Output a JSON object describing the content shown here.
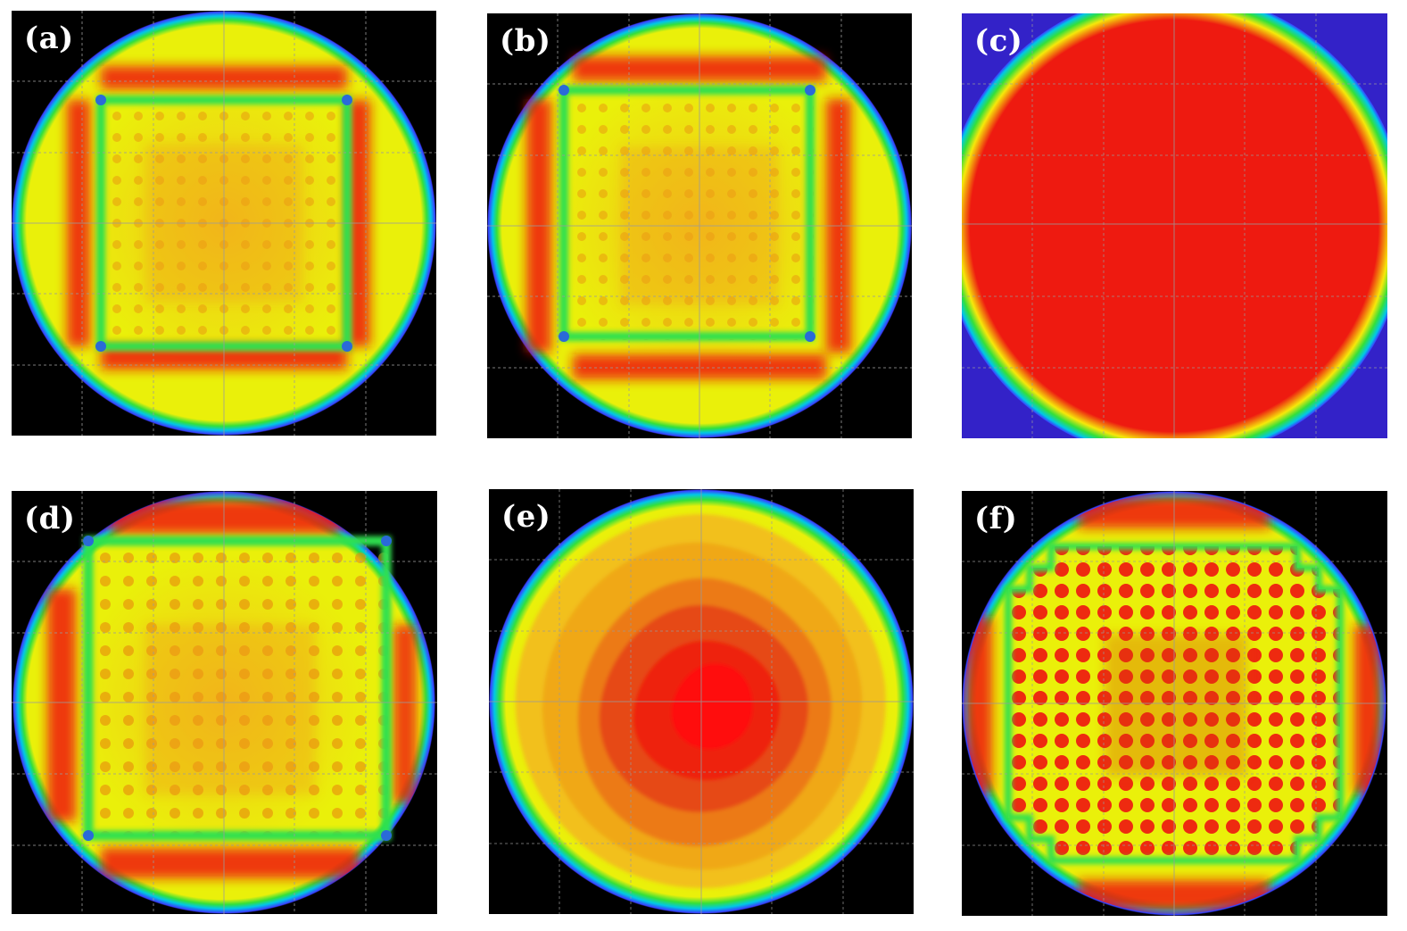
{
  "panels": [
    {
      "id": "a",
      "label": "(a)",
      "pattern": "square-ring"
    },
    {
      "id": "b",
      "label": "(b)",
      "pattern": "square-ring"
    },
    {
      "id": "c",
      "label": "(c)",
      "pattern": "uniform-disk"
    },
    {
      "id": "d",
      "label": "(d)",
      "pattern": "large-square-ring"
    },
    {
      "id": "e",
      "label": "(e)",
      "pattern": "contour-blob"
    },
    {
      "id": "f",
      "label": "(f)",
      "pattern": "dot-grid"
    }
  ],
  "colors": {
    "background": "#000000",
    "rim_blue": "#3a3cff",
    "rim_cyan": "#00e6d0",
    "rim_green": "#34e03a",
    "fill_yellow": "#eaf00a",
    "fill_orange": "#f2a21a",
    "fill_red": "#ee1a10",
    "grid": "#9a9a9a",
    "corner_purple": "#3322c8"
  }
}
